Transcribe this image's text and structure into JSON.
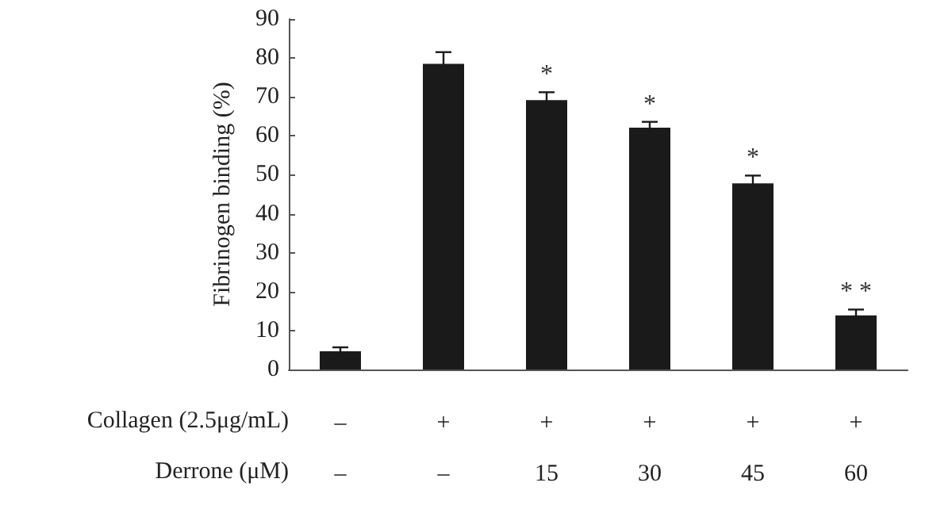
{
  "chart_data": {
    "type": "bar",
    "ylabel": "Fibrinogen binding (%)",
    "categories": [
      "–\n–",
      "+\n–",
      "+\n15",
      "+\n30",
      "+\n45",
      "+\n60"
    ],
    "values": [
      4.7,
      78.5,
      69.2,
      62.1,
      47.8,
      13.9
    ],
    "errors": [
      1,
      3,
      2,
      1.5,
      2,
      1.5
    ],
    "value_labels": [
      null,
      null,
      "*",
      "*",
      "*",
      "**"
    ],
    "color": "#1a1a1a",
    "ylim": [
      0,
      90
    ],
    "yticks": [
      0,
      10,
      20,
      30,
      40,
      50,
      60,
      70,
      80,
      90
    ],
    "annotations": [
      "Collagen (2.5μg/mL)",
      "Derrone (μM)"
    ],
    "grid": false
  }
}
